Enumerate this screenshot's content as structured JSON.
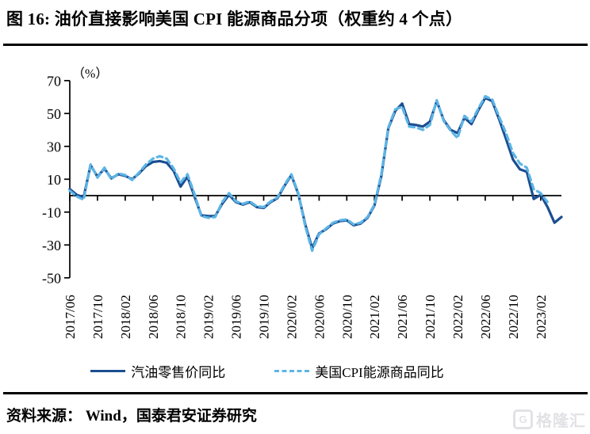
{
  "title": "图 16: 油价直接影响美国 CPI 能源商品分项（权重约 4 个点）",
  "source_note": "资料来源： Wind，国泰君安证券研究",
  "watermark": {
    "logo_letter": "G",
    "text": "格隆汇"
  },
  "legend": [
    {
      "label": "汽油零售价同比",
      "style": "solid",
      "color": "#1B4E90"
    },
    {
      "label": "美国CPI能源商品同比",
      "style": "dashed",
      "color": "#5CB5E6"
    }
  ],
  "chart_data": {
    "type": "line",
    "title": "油价直接影响美国CPI能源商品分项（权重约4个点）",
    "y_axis_unit": "（%）",
    "y_ticks": [
      70,
      50,
      30,
      10,
      -10,
      -30,
      -50
    ],
    "ylim": [
      -50,
      70
    ],
    "grid": false,
    "legend_position": "bottom",
    "start_month": "2017/06",
    "months_per_point": 1,
    "x_tick_labels": [
      "2017/06",
      "2017/10",
      "2018/02",
      "2018/06",
      "2018/10",
      "2019/02",
      "2019/06",
      "2019/10",
      "2020/02",
      "2020/06",
      "2020/10",
      "2021/02",
      "2021/06",
      "2021/10",
      "2022/02",
      "2022/06",
      "2022/10",
      "2023/02"
    ],
    "series": [
      {
        "name": "汽油零售价同比",
        "color": "#1B4E90",
        "dash": null,
        "values": [
          4,
          0.5,
          -1,
          18.5,
          11.5,
          16.5,
          10.5,
          13,
          12,
          10,
          13.5,
          18,
          20.5,
          21,
          20,
          15,
          5.5,
          11.5,
          -0.5,
          -12,
          -12.5,
          -12.5,
          -5,
          0.5,
          -4,
          -5.5,
          -4,
          -7,
          -7.5,
          -4,
          -1.5,
          6,
          12.5,
          1,
          -17.5,
          -32,
          -23,
          -20.5,
          -17,
          -15.5,
          -15,
          -18,
          -17,
          -13.5,
          -6,
          12,
          41,
          51.5,
          56,
          43.5,
          43,
          42,
          45,
          57.5,
          46,
          40,
          38,
          47.5,
          43.5,
          52,
          59.5,
          57.5,
          46.5,
          34.5,
          22,
          16,
          14.5,
          -2,
          0.5,
          -7,
          -16.5,
          -13
        ]
      },
      {
        "name": "美国CPI能源商品同比",
        "color": "#5CB5E6",
        "dash": "7 5",
        "values": [
          3,
          -0.5,
          -2.5,
          19,
          11,
          17,
          10,
          13.5,
          12.5,
          9.5,
          14,
          19,
          22.5,
          24,
          22.5,
          16.5,
          8,
          13,
          1,
          -12.5,
          -13.5,
          -13,
          -4,
          1.5,
          -3.5,
          -5,
          -3.5,
          -6.5,
          -7,
          -3.5,
          -1,
          6.5,
          13,
          1.5,
          -18.5,
          -33.5,
          -23.5,
          -20,
          -16.5,
          -15,
          -14.5,
          -17.5,
          -16.5,
          -13,
          -5.5,
          13,
          41.5,
          52.5,
          54,
          42,
          41.5,
          40,
          43,
          58,
          45.5,
          39.5,
          35,
          48.5,
          45,
          53,
          60.5,
          58.5,
          48,
          38,
          26,
          19.5,
          17,
          4,
          1.5,
          -4
        ]
      }
    ]
  }
}
